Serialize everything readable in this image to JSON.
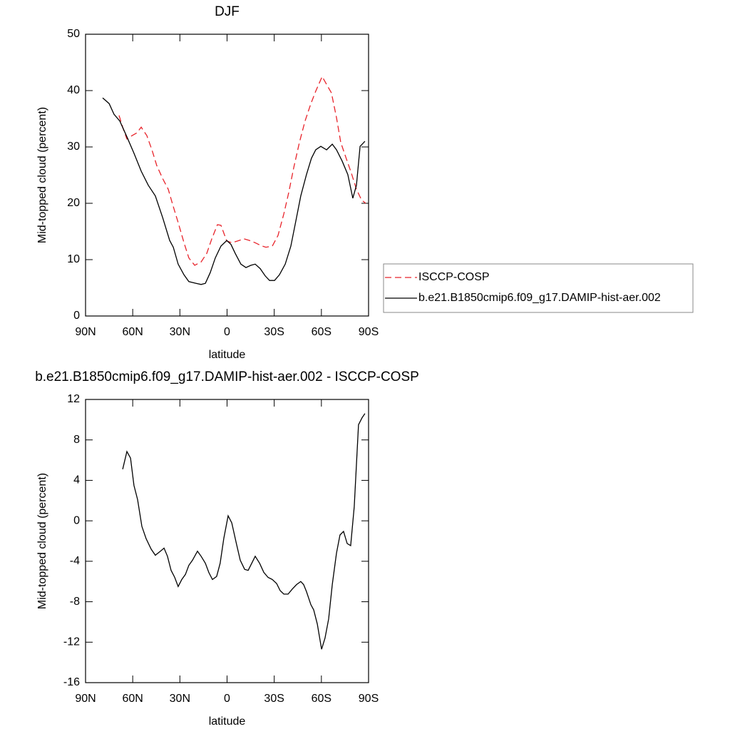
{
  "chart_data": [
    {
      "type": "line",
      "title": "DJF",
      "xlabel": "latitude",
      "ylabel": "Mid-topped cloud (percent)",
      "xlim": [
        90,
        -90
      ],
      "xticks": [
        {
          "value": 90,
          "label": "90N"
        },
        {
          "value": 60,
          "label": "60N"
        },
        {
          "value": 30,
          "label": "30N"
        },
        0,
        {
          "value": -30,
          "label": "30S"
        },
        {
          "value": -60,
          "label": "60S"
        },
        {
          "value": -90,
          "label": "90S"
        }
      ],
      "ylim": [
        0,
        50
      ],
      "yticks": [
        0,
        10,
        20,
        30,
        40,
        50
      ],
      "legend": "right",
      "series": [
        {
          "name": "ISCCP-COSP",
          "color": "#e8232a",
          "style": "dashed",
          "x": [
            68.7,
            66.4,
            63.7,
            60.5,
            57.4,
            54.6,
            51,
            47.8,
            44.7,
            41,
            37.4,
            34.2,
            31.1,
            27.4,
            24.3,
            20.6,
            16.5,
            12.9,
            9.7,
            6.1,
            3.9,
            0.2,
            -3,
            -6.6,
            -10.7,
            -14.3,
            -17.9,
            -21.5,
            -24.7,
            -28.8,
            -32.4,
            -36.1,
            -39.2,
            -42.4,
            -46,
            -49.6,
            -53.3,
            -56.4,
            -60.5,
            -63.3,
            -66.4,
            -69.6,
            -72.3,
            -75.5,
            -79.1,
            -82.3,
            -85.5,
            -88.2
          ],
          "values": [
            35.6,
            33.5,
            31.4,
            32,
            32.5,
            33.5,
            32,
            29.5,
            26.7,
            24.4,
            22.5,
            19.4,
            16.6,
            13,
            10.3,
            9,
            9.6,
            11.1,
            13.7,
            16.2,
            16.1,
            13.3,
            13,
            13.3,
            13.7,
            13.4,
            13,
            12.5,
            12.2,
            12.4,
            14.3,
            18.1,
            21.9,
            26.3,
            30.8,
            34.6,
            37.7,
            39.9,
            42.5,
            41.1,
            39.6,
            35.2,
            30.8,
            28.2,
            25.3,
            22.5,
            20.6,
            20
          ]
        },
        {
          "name": "b.e21.B1850cmip6.f09_g17.DAMIP-hist-aer.002",
          "color": "#000000",
          "style": "solid",
          "x": [
            79.1,
            75,
            71.9,
            68.2,
            63.7,
            59.2,
            54.6,
            50.1,
            45.6,
            41,
            36.5,
            34.2,
            31.1,
            27.4,
            24.3,
            19.7,
            16.5,
            13.8,
            10.7,
            7.5,
            3.9,
            0.2,
            -2.5,
            -5.2,
            -8.8,
            -12,
            -15.2,
            -17.9,
            -21.1,
            -24.3,
            -27,
            -30.2,
            -33.3,
            -37,
            -40.6,
            -43.7,
            -46.9,
            -50.5,
            -53.7,
            -56.4,
            -59.6,
            -63.3,
            -66.9,
            -69.6,
            -73.2,
            -76.8,
            -80,
            -82.3,
            -84.6,
            -87.7
          ],
          "values": [
            38.7,
            37.7,
            35.8,
            34.6,
            31.8,
            28.9,
            25.7,
            23.2,
            21.3,
            17.5,
            13.4,
            12.2,
            9.2,
            7.3,
            6.1,
            5.8,
            5.6,
            5.8,
            7.7,
            10.3,
            12.4,
            13.4,
            12.7,
            11.1,
            9.2,
            8.6,
            9,
            9.2,
            8.4,
            7.1,
            6.3,
            6.3,
            7.3,
            9.2,
            12.4,
            16.8,
            21.3,
            25.1,
            28,
            29.5,
            30.1,
            29.5,
            30.5,
            29.5,
            27.5,
            25.1,
            20.9,
            23.2,
            30.1,
            31
          ]
        }
      ]
    },
    {
      "type": "line",
      "title": "b.e21.B1850cmip6.f09_g17.DAMIP-hist-aer.002 - ISCCP-COSP",
      "xlabel": "latitude",
      "ylabel": "Mid-topped cloud (percent)",
      "xlim": [
        90,
        -90
      ],
      "xticks": [
        {
          "value": 90,
          "label": "90N"
        },
        {
          "value": 60,
          "label": "60N"
        },
        {
          "value": 30,
          "label": "30N"
        },
        0,
        {
          "value": -30,
          "label": "30S"
        },
        {
          "value": -60,
          "label": "60S"
        },
        {
          "value": -90,
          "label": "90S"
        }
      ],
      "ylim": [
        -16,
        12
      ],
      "yticks": [
        -16,
        -12,
        -8,
        -4,
        0,
        4,
        8,
        12
      ],
      "series": [
        {
          "color": "#000000",
          "style": "solid",
          "x": [
            66.4,
            63.7,
            61.4,
            59.2,
            56.9,
            54.2,
            51.5,
            48.3,
            45.6,
            42.4,
            40.1,
            37.9,
            35.6,
            33.3,
            31.1,
            28.8,
            26.5,
            24.3,
            22,
            18.8,
            16.5,
            13.8,
            11.6,
            9.3,
            6.6,
            4.4,
            2.1,
            -0.7,
            -3,
            -5.7,
            -8.4,
            -11.2,
            -13.4,
            -15.7,
            -17.9,
            -20.7,
            -23.4,
            -26.1,
            -28.8,
            -31.5,
            -33.8,
            -36.1,
            -38.8,
            -41.5,
            -44.2,
            -46.9,
            -48.7,
            -50.5,
            -53.3,
            -55.1,
            -57.4,
            -60.1,
            -62.3,
            -64.6,
            -66.9,
            -69.6,
            -71.8,
            -74.1,
            -76.4,
            -78.6,
            -80.9,
            -83.6,
            -85.9,
            -87.7
          ],
          "values": [
            5.1,
            6.85,
            6.2,
            3.5,
            2.1,
            -0.55,
            -1.75,
            -2.8,
            -3.4,
            -3,
            -2.7,
            -3.5,
            -4.9,
            -5.6,
            -6.5,
            -5.8,
            -5.3,
            -4.4,
            -3.9,
            -3,
            -3.5,
            -4.2,
            -5.1,
            -5.8,
            -5.5,
            -4.2,
            -1.75,
            0.5,
            -0.2,
            -2.1,
            -3.9,
            -4.8,
            -4.9,
            -4.2,
            -3.5,
            -4.2,
            -5.1,
            -5.6,
            -5.8,
            -6.2,
            -6.9,
            -7.25,
            -7.25,
            -6.75,
            -6.3,
            -6,
            -6.3,
            -7,
            -8.3,
            -8.8,
            -10.2,
            -12.7,
            -11.6,
            -9.7,
            -6.3,
            -3.2,
            -1.4,
            -1.05,
            -2.25,
            -2.45,
            1.4,
            9.5,
            10.2,
            10.6
          ]
        }
      ]
    }
  ]
}
